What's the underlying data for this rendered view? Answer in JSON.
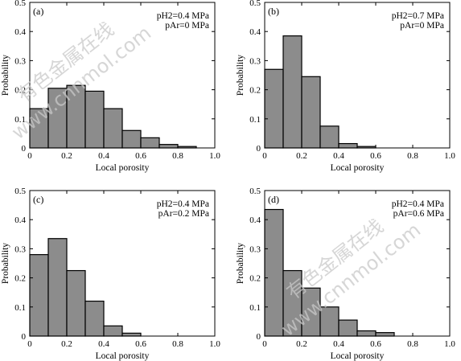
{
  "chart_data": [
    {
      "type": "bar",
      "panel_label": "(a)",
      "x": [
        0.05,
        0.15,
        0.25,
        0.35,
        0.45,
        0.55,
        0.65,
        0.75,
        0.85
      ],
      "values": [
        0.135,
        0.205,
        0.215,
        0.195,
        0.135,
        0.06,
        0.035,
        0.012,
        0.005
      ],
      "bin_width": 0.1,
      "annotation": [
        "pH2=0.4 MPa",
        "pAr=0 MPa"
      ],
      "xlabel": "Local porosity",
      "ylabel": "Probability",
      "xlim": [
        0,
        1.0
      ],
      "ylim": [
        0,
        0.5
      ],
      "xticks": [
        "0",
        "0.2",
        "0.4",
        "0.6",
        "0.8",
        "1.0"
      ],
      "yticks": [
        "0",
        "0.1",
        "0.2",
        "0.3",
        "0.4",
        "0.5"
      ]
    },
    {
      "type": "bar",
      "panel_label": "(b)",
      "x": [
        0.05,
        0.15,
        0.25,
        0.35,
        0.45,
        0.55
      ],
      "values": [
        0.27,
        0.385,
        0.245,
        0.075,
        0.015,
        0.005
      ],
      "bin_width": 0.1,
      "annotation": [
        "pH2=0.7 MPa",
        "pAr=0 MPa"
      ],
      "xlabel": "Local porosity",
      "ylabel": "Probability",
      "xlim": [
        0,
        1.0
      ],
      "ylim": [
        0,
        0.5
      ],
      "xticks": [
        "0",
        "0.2",
        "0.4",
        "0.6",
        "0.8",
        "1.0"
      ],
      "yticks": [
        "0",
        "0.1",
        "0.2",
        "0.3",
        "0.4",
        "0.5"
      ]
    },
    {
      "type": "bar",
      "panel_label": "(c)",
      "x": [
        0.05,
        0.15,
        0.25,
        0.35,
        0.45,
        0.55
      ],
      "values": [
        0.28,
        0.335,
        0.225,
        0.12,
        0.035,
        0.01
      ],
      "bin_width": 0.1,
      "annotation": [
        "pH2=0.4 MPa",
        "pAr=0.2 MPa"
      ],
      "xlabel": "Local porosity",
      "ylabel": "Probability",
      "xlim": [
        0,
        1.0
      ],
      "ylim": [
        0,
        0.5
      ],
      "xticks": [
        "0",
        "0.2",
        "0.4",
        "0.6",
        "0.8",
        "1.0"
      ],
      "yticks": [
        "0",
        "0.1",
        "0.2",
        "0.3",
        "0.4",
        "0.5"
      ]
    },
    {
      "type": "bar",
      "panel_label": "(d)",
      "x": [
        0.05,
        0.15,
        0.25,
        0.35,
        0.45,
        0.55,
        0.65
      ],
      "values": [
        0.435,
        0.225,
        0.165,
        0.1,
        0.055,
        0.018,
        0.012
      ],
      "bin_width": 0.1,
      "annotation": [
        "pH2=0.4 MPa",
        "pAr=0.6 MPa"
      ],
      "xlabel": "Local porosity",
      "ylabel": "Probability",
      "xlim": [
        0,
        1.0
      ],
      "ylim": [
        0,
        0.5
      ],
      "xticks": [
        "0",
        "0.2",
        "0.4",
        "0.6",
        "0.8",
        "1.0"
      ],
      "yticks": [
        "0",
        "0.1",
        "0.2",
        "0.3",
        "0.4",
        "0.5"
      ]
    }
  ],
  "colors": {
    "bar_fill": "#8c8c8c",
    "bar_stroke": "#000000",
    "axis": "#000000",
    "watermark": "#c9c9c9"
  },
  "watermark": {
    "line1": "有色金属在线",
    "line2": "www.cnnmol.com"
  }
}
